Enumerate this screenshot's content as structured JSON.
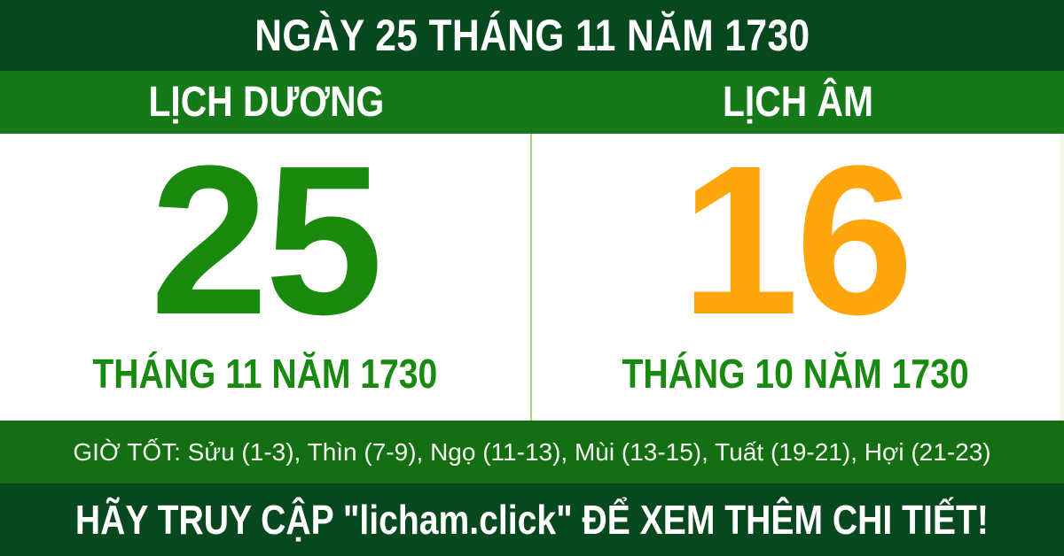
{
  "colors": {
    "dark_green_bar": "#07481f",
    "bright_green_bar": "#15791a",
    "good_hours_bar_green": "#156d14",
    "solar_day_green": "#1a8a0e",
    "lunar_day_orange": "#ffa60d",
    "month_text_green": "#188a10",
    "divider_light_green": "#a8d47f",
    "panel_background": "#ffffff"
  },
  "top_bar": {
    "title": "NGÀY 25 THÁNG 11 NĂM 1730"
  },
  "header_bar": {
    "solar_label": "LỊCH DƯƠNG",
    "lunar_label": "LỊCH ÂM"
  },
  "calendar": {
    "solar": {
      "day": "25",
      "month_year": "THÁNG 11 NĂM 1730"
    },
    "lunar": {
      "day": "16",
      "month_year": "THÁNG 10 NĂM 1730"
    }
  },
  "good_hours_bar": {
    "text": "GIỜ TỐT: Sửu (1-3), Thìn (7-9), Ngọ (11-13), Mùi (13-15), Tuất (19-21), Hợi (21-23)"
  },
  "footer_bar": {
    "text": "HÃY TRUY CẬP \"licham.click\" ĐỂ XEM THÊM CHI TIẾT!"
  }
}
